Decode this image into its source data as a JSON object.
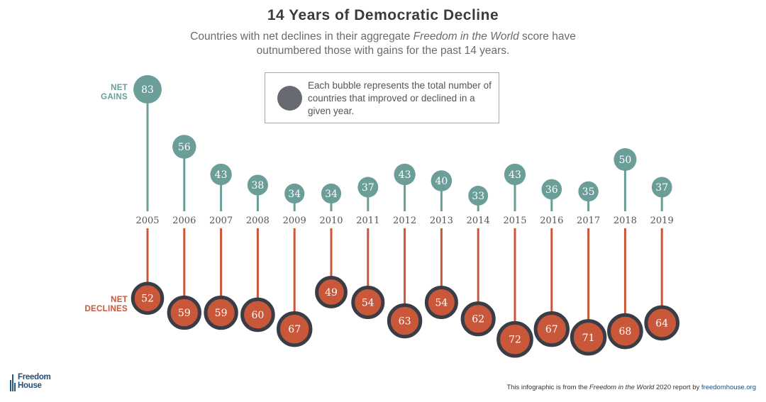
{
  "header": {
    "title": "14 Years of Democratic Decline",
    "subtitle_pre": "Countries with net declines in their aggregate ",
    "subtitle_ital": "Freedom in the World",
    "subtitle_post": " score have outnumbered those with gains for the past 14 years."
  },
  "legend": {
    "text": "Each bubble represents the total number of countries that improved or declined in a given year."
  },
  "labels": {
    "gains_line1": "NET",
    "gains_line2": "GAINS",
    "declines_line1": "NET",
    "declines_line2": "DECLINES"
  },
  "footer": {
    "pre": "This infographic is from the ",
    "ital": "Freedom in the World",
    "mid": " 2020 report by ",
    "link": "freedomhouse.org"
  },
  "logo": {
    "line1": "Freedom",
    "line2": "House"
  },
  "colors": {
    "gains": "#6b9e99",
    "declines": "#c9573a",
    "declines_ring": "#3a3d45",
    "legend_dot": "#676a70"
  },
  "chart_data": {
    "type": "lollipop",
    "categories": [
      "2005",
      "2006",
      "2007",
      "2008",
      "2009",
      "2010",
      "2011",
      "2012",
      "2013",
      "2014",
      "2015",
      "2016",
      "2017",
      "2018",
      "2019"
    ],
    "series": [
      {
        "name": "NET GAINS",
        "values": [
          83,
          56,
          43,
          38,
          34,
          34,
          37,
          43,
          40,
          33,
          43,
          36,
          35,
          50,
          37
        ]
      },
      {
        "name": "NET DECLINES",
        "values": [
          52,
          59,
          59,
          60,
          67,
          49,
          54,
          63,
          54,
          62,
          72,
          67,
          71,
          68,
          64
        ]
      }
    ]
  }
}
